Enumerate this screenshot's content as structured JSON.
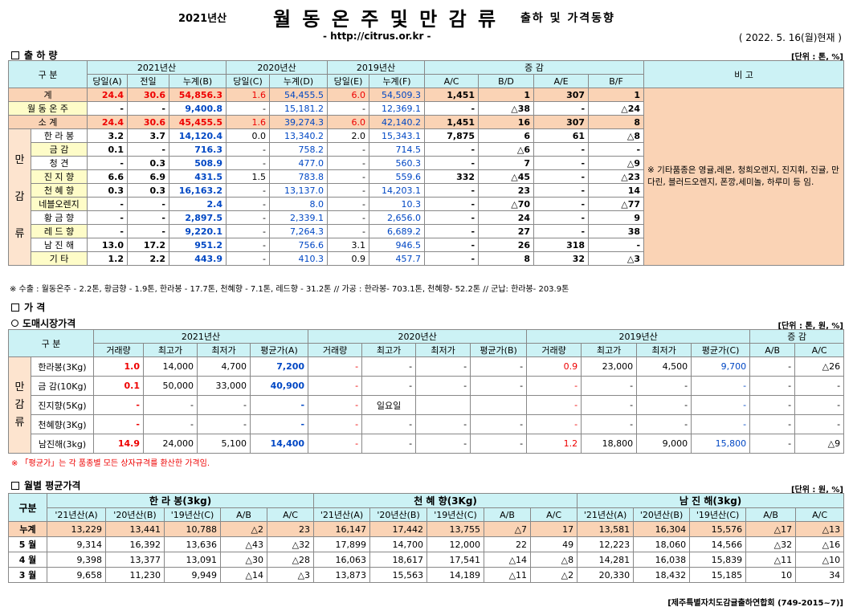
{
  "header": {
    "year": "2021년산",
    "title": "월 동 온 주 및 만 감 류",
    "subtitle": "출하 및 가격동향",
    "url": "- http://citrus.or.kr -",
    "as_of": "( 2022. 5. 16(월)현재 )"
  },
  "shipment": {
    "section_title": "출 하 량",
    "unit": "[단위 : 톤, %]",
    "h_gubun": "구  분",
    "h_2021": "2021년산",
    "h_2020": "2020년산",
    "h_2019": "2019년산",
    "h_change": "증    감",
    "h_remark": "비 고",
    "cols": [
      "당일(A)",
      "전일",
      "누계(B)",
      "당일(C)",
      "누계(D)",
      "당일(E)",
      "누계(F)",
      "A/C",
      "B/D",
      "A/E",
      "B/F"
    ],
    "side_label_1": "만",
    "side_label_2": "감",
    "side_label_3": "류",
    "remark": "※ 기타품종은 영귤,레몬, 청희오렌지, 진지휘, 진귤, 만다린, 블러드오렌지, 폰깡,세미놀, 하루미 등 임.",
    "rows": [
      {
        "label": "계",
        "v": [
          "24.4",
          "30.6",
          "54,856.3",
          "1.6",
          "54,455.5",
          "6.0",
          "54,509.3",
          "1,451",
          "1",
          "307",
          "1"
        ]
      },
      {
        "label": "월 동 온 주",
        "v": [
          "-",
          "-",
          "9,400.8",
          "-",
          "15,181.2",
          "-",
          "12,369.1",
          "-",
          "△38",
          "-",
          "△24"
        ]
      },
      {
        "label": "소    계",
        "v": [
          "24.4",
          "30.6",
          "45,455.5",
          "1.6",
          "39,274.3",
          "6.0",
          "42,140.2",
          "1,451",
          "16",
          "307",
          "8"
        ]
      },
      {
        "label": "한 라 봉",
        "v": [
          "3.2",
          "3.7",
          "14,120.4",
          "0.0",
          "13,340.2",
          "2.0",
          "15,343.1",
          "7,875",
          "6",
          "61",
          "△8"
        ]
      },
      {
        "label": "금    감",
        "v": [
          "0.1",
          "-",
          "716.3",
          "-",
          "758.2",
          "-",
          "714.5",
          "-",
          "△6",
          "-",
          "-"
        ]
      },
      {
        "label": "청    견",
        "v": [
          "-",
          "0.3",
          "508.9",
          "-",
          "477.0",
          "-",
          "560.3",
          "-",
          "7",
          "-",
          "△9"
        ]
      },
      {
        "label": "진 지 향",
        "v": [
          "6.6",
          "6.9",
          "431.5",
          "1.5",
          "783.8",
          "-",
          "559.6",
          "332",
          "△45",
          "-",
          "△23"
        ]
      },
      {
        "label": "천 혜 향",
        "v": [
          "0.3",
          "0.3",
          "16,163.2",
          "-",
          "13,137.0",
          "-",
          "14,203.1",
          "-",
          "23",
          "-",
          "14"
        ]
      },
      {
        "label": "네블오렌지",
        "v": [
          "-",
          "-",
          "2.4",
          "-",
          "8.0",
          "-",
          "10.3",
          "-",
          "△70",
          "-",
          "△77"
        ]
      },
      {
        "label": "황 금 향",
        "v": [
          "-",
          "-",
          "2,897.5",
          "-",
          "2,339.1",
          "-",
          "2,656.0",
          "-",
          "24",
          "-",
          "9"
        ]
      },
      {
        "label": "레 드 향",
        "v": [
          "-",
          "-",
          "9,220.1",
          "-",
          "7,264.3",
          "-",
          "6,689.2",
          "-",
          "27",
          "-",
          "38"
        ]
      },
      {
        "label": "남 진 해",
        "v": [
          "13.0",
          "17.2",
          "951.2",
          "-",
          "756.6",
          "3.1",
          "946.5",
          "-",
          "26",
          "318",
          "-"
        ]
      },
      {
        "label": "기    타",
        "v": [
          "1.2",
          "2.2",
          "443.9",
          "-",
          "410.3",
          "0.9",
          "457.7",
          "-",
          "8",
          "32",
          "△3"
        ]
      }
    ],
    "note": "※ 수출 : 월동온주 - 2.2톤, 황금향 - 1.9톤, 한라봉 - 17.7톤, 천혜향 - 7.1톤, 레드향 - 31.2톤 // 가공 : 한라봉- 703.1톤, 천혜향- 52.2톤 // 군납: 한라봉- 203.9톤"
  },
  "price": {
    "section_title": "가    격",
    "sub_title": "도매시장가격",
    "unit": "[단위 : 톤, 원, %]",
    "h_gubun": "구  분",
    "h_2021": "2021년산",
    "h_2020": "2020년산",
    "h_2019": "2019년산",
    "h_change": "증    감",
    "cols": [
      "거래량",
      "최고가",
      "최저가",
      "평균가(A)",
      "거래량",
      "최고가",
      "최저가",
      "평균가(B)",
      "거래량",
      "최고가",
      "최저가",
      "평균가(C)",
      "A/B",
      "A/C"
    ],
    "side_label_1": "만",
    "side_label_2": "감",
    "side_label_3": "류",
    "rows": [
      {
        "label": "한라봉(3Kg)",
        "v": [
          "1.0",
          "14,000",
          "4,700",
          "7,200",
          "-",
          "-",
          "-",
          "-",
          "0.9",
          "23,000",
          "4,500",
          "9,700",
          "-",
          "△26"
        ]
      },
      {
        "label": "금  감(10Kg)",
        "v": [
          "0.1",
          "50,000",
          "33,000",
          "40,900",
          "-",
          "-",
          "-",
          "-",
          "-",
          "-",
          "-",
          "-",
          "-",
          "-"
        ]
      },
      {
        "label": "진지향(5Kg)",
        "v": [
          "-",
          "-",
          "-",
          "-",
          "-",
          "일요일",
          "",
          "",
          "-",
          "-",
          "-",
          "-",
          "-",
          "-"
        ]
      },
      {
        "label": "천혜향(3Kg)",
        "v": [
          "-",
          "-",
          "-",
          "-",
          "-",
          "-",
          "-",
          "-",
          "-",
          "-",
          "-",
          "-",
          "-",
          "-"
        ]
      },
      {
        "label": "남진해(3kg)",
        "v": [
          "14.9",
          "24,000",
          "5,100",
          "14,400",
          "-",
          "-",
          "-",
          "-",
          "1.2",
          "18,800",
          "9,000",
          "15,800",
          "-",
          "△9"
        ]
      }
    ],
    "note": "※ 「평균가」는 각 품종별 모든 상자규격를 환산한 가격임."
  },
  "monthly": {
    "section_title": "월별 평균가격",
    "unit": "[단위 : 원, %]",
    "h_gubun": "구분",
    "groups": [
      "한 라 봉(3kg)",
      "천 혜 향(3Kg)",
      "남 진 해(3kg)"
    ],
    "cols": [
      "'21년산(A)",
      "'20년산(B)",
      "'19년산(C)",
      "A/B",
      "A/C"
    ],
    "rows": [
      {
        "label": "누계",
        "v": [
          "13,229",
          "13,441",
          "10,788",
          "△2",
          "23",
          "16,147",
          "17,442",
          "13,755",
          "△7",
          "17",
          "13,581",
          "16,304",
          "15,576",
          "△17",
          "△13"
        ]
      },
      {
        "label": "5 월",
        "v": [
          "9,314",
          "16,392",
          "13,636",
          "△43",
          "△32",
          "17,899",
          "14,700",
          "12,000",
          "22",
          "49",
          "12,223",
          "18,060",
          "14,566",
          "△32",
          "△16"
        ]
      },
      {
        "label": "4 월",
        "v": [
          "9,398",
          "13,377",
          "13,091",
          "△30",
          "△28",
          "16,063",
          "18,617",
          "17,541",
          "△14",
          "△8",
          "14,281",
          "16,038",
          "15,839",
          "△11",
          "△10"
        ]
      },
      {
        "label": "3 월",
        "v": [
          "9,658",
          "11,230",
          "9,949",
          "△14",
          "△3",
          "13,873",
          "15,563",
          "14,189",
          "△11",
          "△2",
          "20,330",
          "18,432",
          "15,185",
          "10",
          "34"
        ]
      }
    ],
    "footer": "[제주특별자치도감귤출하연합회 (749-2015~7)]"
  }
}
